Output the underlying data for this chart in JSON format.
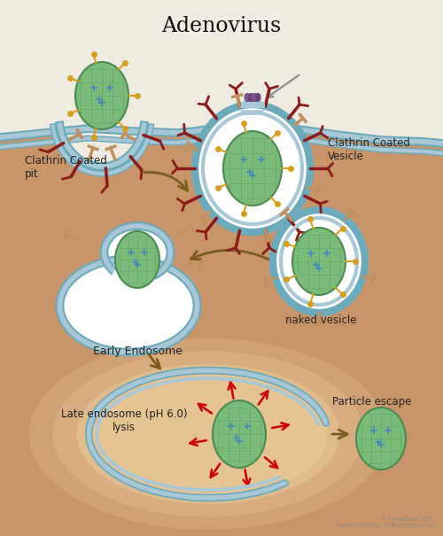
{
  "title": "Adenovirus",
  "bg_color": "#C8956A",
  "extracell_color": "#F0EBE0",
  "membrane_fill": "#A8C8D8",
  "membrane_line": "#6AAABB",
  "vesicle_white": "#FFFFFF",
  "clathrin_color": "#8B1A1A",
  "virus_green_light": "#7ABB7A",
  "virus_green_dark": "#4A8A50",
  "virus_green_mid": "#5AA060",
  "arrow_brown": "#7A5C20",
  "red_arrow": "#CC0000",
  "late_glow": "#E8C898",
  "spike_gold": "#D4A020",
  "receptor_tan": "#C09060",
  "purple1": "#885599",
  "purple2": "#664477",
  "text_dark": "#222222",
  "gray_arrow": "#888888",
  "label_pit": "Clathrin Coated\npit",
  "label_ccv": "Clathrin Coated\nVesicle",
  "label_naked": "naked vesicle",
  "label_early": "Early Endosome",
  "label_late": "Late endosome (pH 6.0)\nlysis",
  "label_escape": "Particle escape",
  "label_copy": "© ViralZone 2011\nSwiss Institute of Bioinformatics",
  "figsize": [
    5.0,
    6.05
  ],
  "dpi": 100
}
